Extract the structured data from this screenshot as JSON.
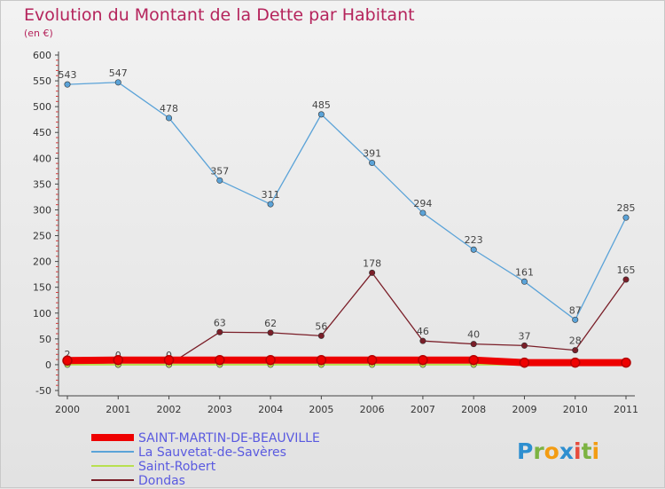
{
  "chart_data": {
    "type": "line",
    "title": "Evolution du Montant de la Dette par Habitant",
    "subtitle": "(en €)",
    "categories": [
      "2000",
      "2001",
      "2002",
      "2003",
      "2004",
      "2005",
      "2006",
      "2007",
      "2008",
      "2009",
      "2010",
      "2011"
    ],
    "ylim": [
      -50,
      600
    ],
    "yticks": [
      -50,
      0,
      50,
      100,
      150,
      200,
      250,
      300,
      350,
      400,
      450,
      500,
      550,
      600
    ],
    "grid": false,
    "legend_position": "bottom-left",
    "series": [
      {
        "name": "SAINT-MARTIN-DE-BEAUVILLE",
        "color": "#ee0000",
        "values": [
          8,
          9,
          9,
          9,
          9,
          9,
          9,
          9,
          9,
          4,
          4,
          4
        ],
        "show_labels": false
      },
      {
        "name": "La Sauvetat-de-Savères",
        "color": "#5ba3d8",
        "values": [
          543,
          547,
          478,
          357,
          311,
          485,
          391,
          294,
          223,
          161,
          87,
          285
        ],
        "show_labels": true
      },
      {
        "name": "Saint-Robert",
        "color": "#b8e050",
        "values": [
          0,
          0,
          0,
          0,
          0,
          0,
          0,
          0,
          0,
          0,
          2,
          3
        ],
        "show_labels": false
      },
      {
        "name": "Dondas",
        "color": "#7a1e28",
        "values": [
          2,
          0,
          0,
          63,
          62,
          56,
          178,
          46,
          40,
          37,
          28,
          165
        ],
        "show_labels": true
      }
    ]
  },
  "branding": {
    "logo_text": "Proxiti"
  }
}
